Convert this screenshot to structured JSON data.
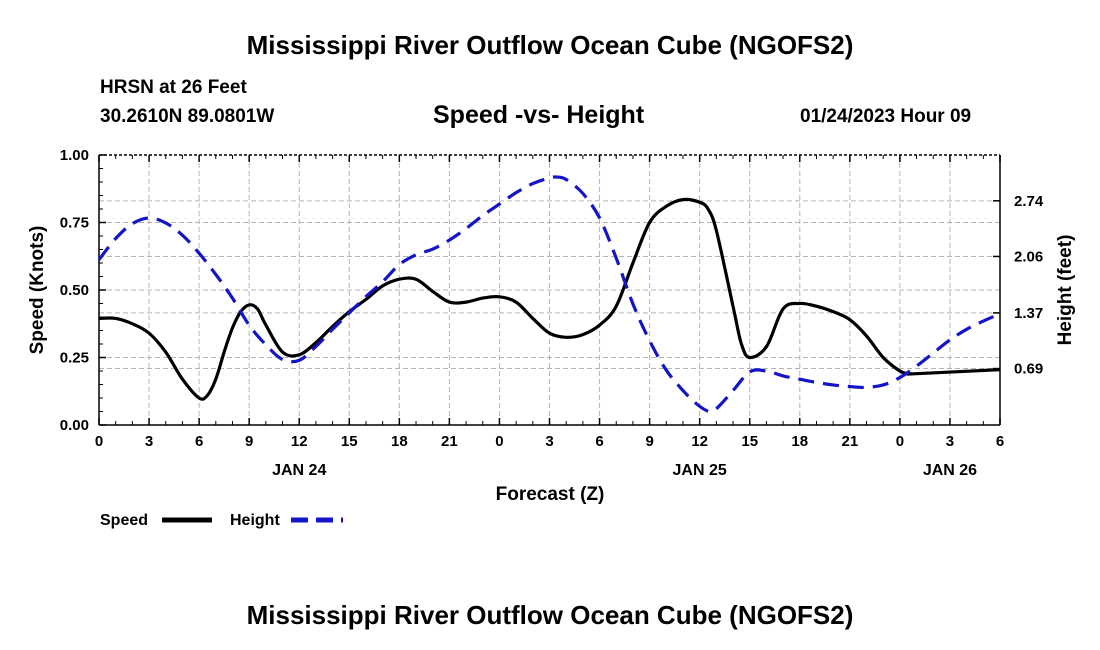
{
  "page": {
    "title": "Mississippi River Outflow Ocean Cube (NGOFS2)",
    "footer_title": "Mississippi River Outflow Ocean Cube (NGOFS2)",
    "station": "HRSN at 26 Feet",
    "coords": "30.2610N  89.0801W",
    "subtitle": "Speed -vs- Height",
    "datetime": "01/24/2023 Hour 09"
  },
  "chart_data": {
    "type": "line",
    "title": "Speed -vs- Height",
    "xlabel": "Forecast (Z)",
    "ylabel": "Speed (Knots)",
    "y2label": "Height (feet)",
    "xlim": [
      0,
      54
    ],
    "ylim": [
      0,
      1.0
    ],
    "y2lim": [
      0.0,
      3.3
    ],
    "grid": true,
    "legend_position": "bottom-left",
    "x_ticks": [
      0,
      3,
      6,
      9,
      12,
      15,
      18,
      21,
      24,
      27,
      30,
      33,
      36,
      39,
      42,
      45,
      48,
      51,
      54
    ],
    "x_tick_labels": [
      "0",
      "3",
      "6",
      "9",
      "12",
      "15",
      "18",
      "21",
      "0",
      "3",
      "6",
      "9",
      "12",
      "15",
      "18",
      "21",
      "0",
      "3",
      "6"
    ],
    "date_labels": [
      {
        "x": 12,
        "label": "JAN 24"
      },
      {
        "x": 36,
        "label": "JAN 25"
      },
      {
        "x": 51,
        "label": "JAN 26"
      }
    ],
    "y_ticks": [
      0,
      0.25,
      0.5,
      0.75,
      1.0
    ],
    "y_tick_labels": [
      "0.00",
      "0.25",
      "0.50",
      "0.75",
      "1.00"
    ],
    "y2_ticks": [
      0.69,
      1.37,
      2.06,
      2.74
    ],
    "y2_tick_labels": [
      "0.69",
      "1.37",
      "2.06",
      "2.74"
    ],
    "series": [
      {
        "name": "Speed",
        "axis": "left",
        "color": "#000000",
        "dash": "solid",
        "x": [
          0,
          1,
          2,
          3,
          4,
          5,
          6,
          6.5,
          7,
          7.5,
          8,
          8.5,
          9,
          9.5,
          10,
          11,
          12,
          13,
          14,
          15,
          16,
          17,
          18,
          19,
          20,
          21,
          22,
          23,
          24,
          25,
          26,
          27,
          28,
          29,
          30,
          31,
          32,
          33,
          34,
          35,
          36,
          36.5,
          37,
          38,
          38.5,
          39,
          40,
          41,
          42,
          43,
          44,
          45,
          46,
          47,
          48,
          48.5,
          49,
          54
        ],
        "values": [
          0.395,
          0.395,
          0.375,
          0.34,
          0.27,
          0.17,
          0.1,
          0.11,
          0.17,
          0.27,
          0.36,
          0.42,
          0.445,
          0.43,
          0.37,
          0.27,
          0.26,
          0.305,
          0.365,
          0.42,
          0.465,
          0.515,
          0.54,
          0.54,
          0.495,
          0.455,
          0.455,
          0.47,
          0.475,
          0.455,
          0.395,
          0.34,
          0.325,
          0.335,
          0.37,
          0.44,
          0.6,
          0.75,
          0.81,
          0.835,
          0.825,
          0.8,
          0.72,
          0.44,
          0.3,
          0.25,
          0.29,
          0.43,
          0.45,
          0.44,
          0.42,
          0.39,
          0.33,
          0.25,
          0.2,
          0.19,
          0.19,
          0.205
        ]
      },
      {
        "name": "Height",
        "axis": "right",
        "color": "#1414c8",
        "dash": "dashed",
        "x": [
          0,
          1,
          2,
          3,
          4,
          5,
          6,
          7,
          8,
          9,
          10,
          11,
          12,
          13,
          14,
          15,
          16,
          17,
          18,
          19,
          20,
          21,
          22,
          23,
          24,
          25,
          26,
          27,
          27.5,
          28,
          29,
          30,
          31,
          32,
          33,
          34,
          35,
          35.8,
          36.5,
          37,
          38,
          39,
          40,
          41,
          42,
          43,
          44,
          45,
          46,
          47,
          48,
          49,
          50,
          51,
          52,
          53,
          54
        ],
        "values": [
          2.02,
          2.28,
          2.46,
          2.53,
          2.47,
          2.32,
          2.1,
          1.84,
          1.55,
          1.22,
          0.98,
          0.8,
          0.79,
          0.96,
          1.17,
          1.37,
          1.57,
          1.75,
          1.96,
          2.08,
          2.15,
          2.26,
          2.4,
          2.56,
          2.7,
          2.84,
          2.95,
          3.02,
          3.03,
          3.0,
          2.83,
          2.53,
          2.04,
          1.48,
          1.03,
          0.67,
          0.42,
          0.26,
          0.17,
          0.2,
          0.42,
          0.65,
          0.66,
          0.6,
          0.56,
          0.52,
          0.49,
          0.47,
          0.46,
          0.49,
          0.58,
          0.72,
          0.88,
          1.04,
          1.17,
          1.27,
          1.36
        ]
      }
    ]
  }
}
